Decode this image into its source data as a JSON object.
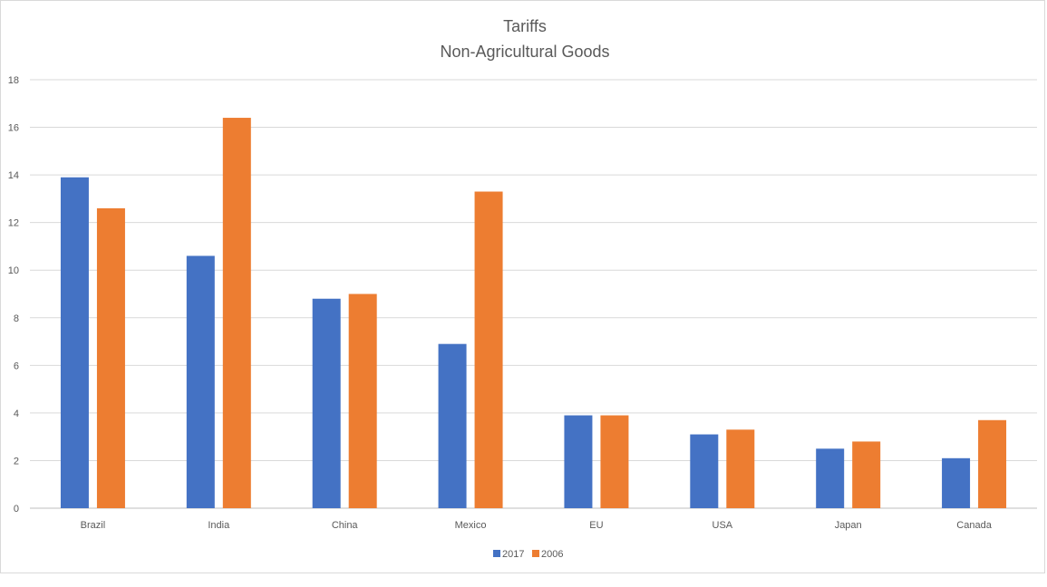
{
  "chart_data": {
    "type": "bar",
    "title": "Tariffs",
    "subtitle": "Non-Agricultural Goods",
    "xlabel": "",
    "ylabel": "",
    "categories": [
      "Brazil",
      "India",
      "China",
      "Mexico",
      "EU",
      "USA",
      "Japan",
      "Canada"
    ],
    "series": [
      {
        "name": "2017",
        "color": "#4472c4",
        "values": [
          13.9,
          10.6,
          8.8,
          6.9,
          3.9,
          3.1,
          2.5,
          2.1
        ]
      },
      {
        "name": "2006",
        "color": "#ed7d31",
        "values": [
          12.6,
          16.4,
          9.0,
          13.3,
          3.9,
          3.3,
          2.8,
          3.7
        ]
      }
    ],
    "ylim": [
      0,
      18
    ],
    "yticks": [
      0,
      2,
      4,
      6,
      8,
      10,
      12,
      14,
      16,
      18
    ],
    "grid": true,
    "legend_position": "bottom"
  }
}
